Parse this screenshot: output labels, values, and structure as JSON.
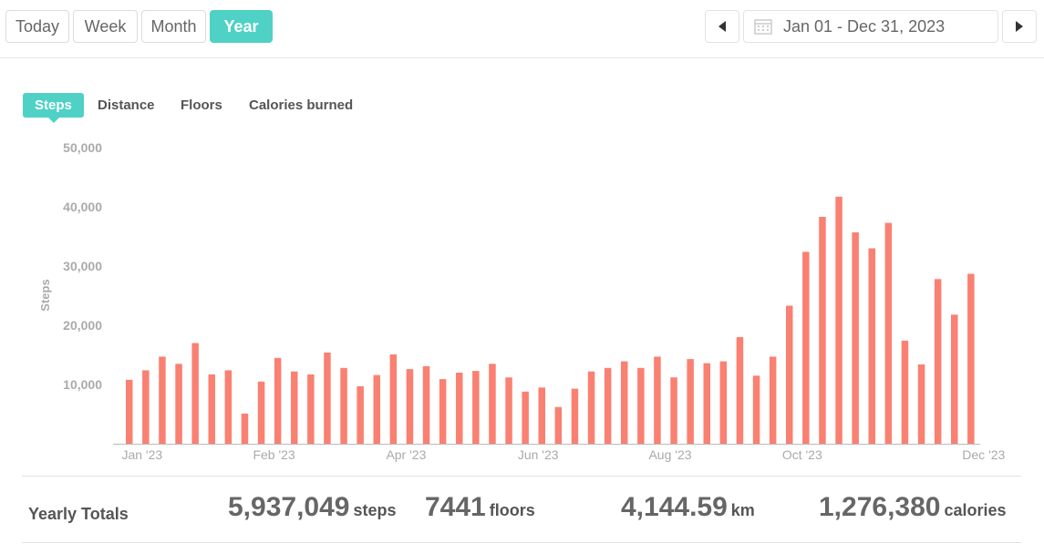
{
  "range_buttons": [
    {
      "label": "Today",
      "active": false
    },
    {
      "label": "Week",
      "active": false
    },
    {
      "label": "Month",
      "active": false
    },
    {
      "label": "Year",
      "active": true
    }
  ],
  "date_range": {
    "label": "Jan 01 - Dec 31, 2023",
    "prev_icon": "triangle-left-icon",
    "next_icon": "triangle-right-icon",
    "calendar_icon": "calendar-icon"
  },
  "metric_tabs": [
    {
      "label": "Steps",
      "active": true
    },
    {
      "label": "Distance",
      "active": false
    },
    {
      "label": "Floors",
      "active": false
    },
    {
      "label": "Calories burned",
      "active": false
    }
  ],
  "chart_data": {
    "type": "bar",
    "ylabel": "Steps",
    "ylim": [
      0,
      50000
    ],
    "yticks": [
      "10,000",
      "20,000",
      "30,000",
      "40,000",
      "50,000"
    ],
    "ytick_values": [
      10000,
      20000,
      30000,
      40000,
      50000
    ],
    "xtick_labels": [
      "Jan '23",
      "Feb '23",
      "Apr '23",
      "Jun '23",
      "Aug '23",
      "Oct '23",
      "Dec '23"
    ],
    "xtick_bar_index": [
      0,
      8,
      16,
      24,
      32,
      40,
      51
    ],
    "bar_color": "#fa8072",
    "values": [
      10800,
      12400,
      14700,
      13500,
      17000,
      11700,
      12400,
      5100,
      10500,
      14500,
      12200,
      11700,
      15400,
      12800,
      9700,
      11600,
      15100,
      12600,
      13100,
      10900,
      12000,
      12300,
      13500,
      11200,
      8800,
      9500,
      6200,
      9300,
      12200,
      12800,
      13900,
      12800,
      14700,
      11200,
      14300,
      13600,
      13900,
      18000,
      11500,
      14700,
      23300,
      32400,
      38300,
      41700,
      35700,
      33000,
      37300,
      17400,
      13400,
      27800,
      21800,
      28700
    ],
    "grid": false
  },
  "totals": {
    "title": "Yearly Totals",
    "steps": {
      "value": "5,937,049",
      "unit": "steps"
    },
    "floors": {
      "value": "7441",
      "unit": "floors"
    },
    "distance": {
      "value": "4,144.59",
      "unit": "km"
    },
    "calories": {
      "value": "1,276,380",
      "unit": "calories"
    }
  }
}
